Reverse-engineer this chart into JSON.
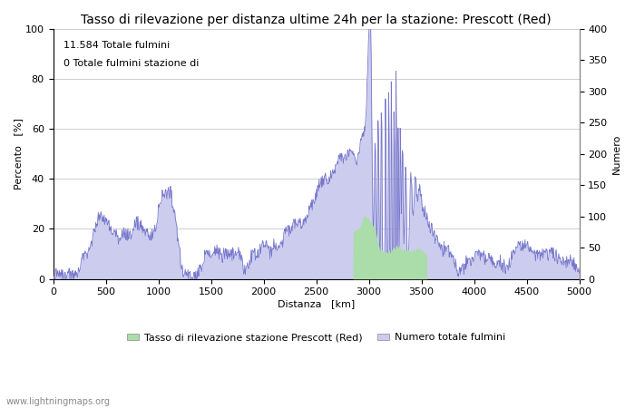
{
  "title": "Tasso di rilevazione per distanza ultime 24h per la stazione: Prescott (Red)",
  "xlabel": "Distanza   [km]",
  "ylabel_left": "Percento   [%]",
  "ylabel_right": "Numero",
  "annotation_line1": "11.584 Totale fulmini",
  "annotation_line2": "0 Totale fulmini stazione di",
  "xlim": [
    0,
    5000
  ],
  "ylim_left": [
    0,
    100
  ],
  "ylim_right": [
    0,
    400
  ],
  "xticks": [
    0,
    500,
    1000,
    1500,
    2000,
    2500,
    3000,
    3500,
    4000,
    4500,
    5000
  ],
  "yticks_left": [
    0,
    20,
    40,
    60,
    80,
    100
  ],
  "yticks_right": [
    0,
    50,
    100,
    150,
    200,
    250,
    300,
    350,
    400
  ],
  "fill_color_green": "#aaddaa",
  "fill_color_blue": "#ccccee",
  "line_color": "#7777cc",
  "bg_color": "#ffffff",
  "grid_color": "#bbbbbb",
  "legend_label_green": "Tasso di rilevazione stazione Prescott (Red)",
  "legend_label_blue": "Numero totale fulmini",
  "watermark": "www.lightningmaps.org",
  "title_fontsize": 10,
  "label_fontsize": 8,
  "tick_fontsize": 8,
  "annotation_fontsize": 8
}
